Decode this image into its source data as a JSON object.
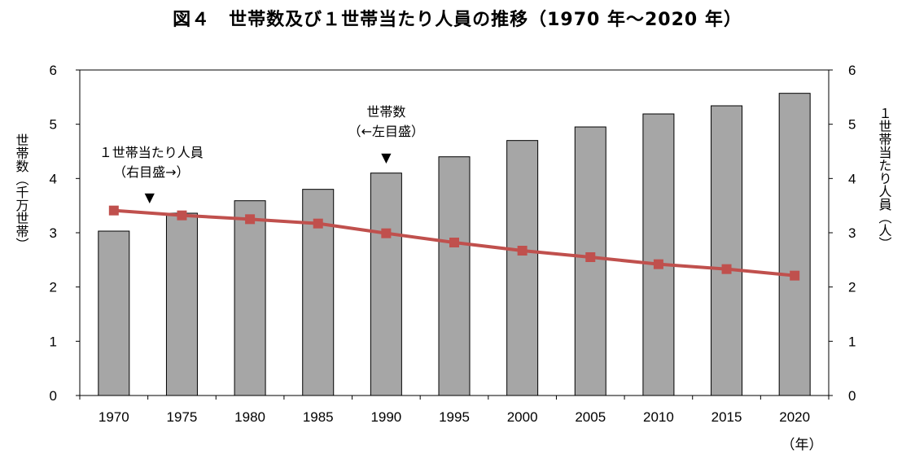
{
  "title": "図４　世帯数及び１世帯当たり人員の推移（1970 年～2020 年）",
  "chart_data": {
    "type": "bar",
    "categories": [
      "1970",
      "1975",
      "1980",
      "1985",
      "1990",
      "1995",
      "2000",
      "2005",
      "2010",
      "2015",
      "2020"
    ],
    "series": [
      {
        "kind": "bar",
        "axis": "left",
        "color": "#a6a6a6",
        "values": [
          3.03,
          3.36,
          3.59,
          3.8,
          4.1,
          4.4,
          4.7,
          4.95,
          5.19,
          5.34,
          5.57
        ]
      },
      {
        "kind": "line",
        "axis": "right",
        "color": "#c0504d",
        "marker": "square",
        "values": [
          3.41,
          3.32,
          3.25,
          3.17,
          2.99,
          2.82,
          2.67,
          2.55,
          2.42,
          2.33,
          2.21
        ]
      }
    ],
    "ylabel_left": "世帯数（千万世帯）",
    "ylabel_right": "１世帯当たり人員（人）",
    "xunit": "（年）",
    "ylim_left": [
      0,
      6
    ],
    "ylim_right": [
      0,
      6
    ],
    "yticks_left": [
      "0",
      "1",
      "2",
      "3",
      "4",
      "5",
      "6"
    ],
    "yticks_right": [
      "0",
      "1",
      "2",
      "3",
      "4",
      "5",
      "6"
    ],
    "annotations": [
      {
        "lines": [
          "１世帯当たり人員",
          "（右目盛→）"
        ],
        "target": "1972.5",
        "marker": "▼"
      },
      {
        "lines": [
          "世帯数",
          "（←左目盛）"
        ],
        "target": "1990",
        "marker": "▼"
      }
    ],
    "grid": false
  }
}
